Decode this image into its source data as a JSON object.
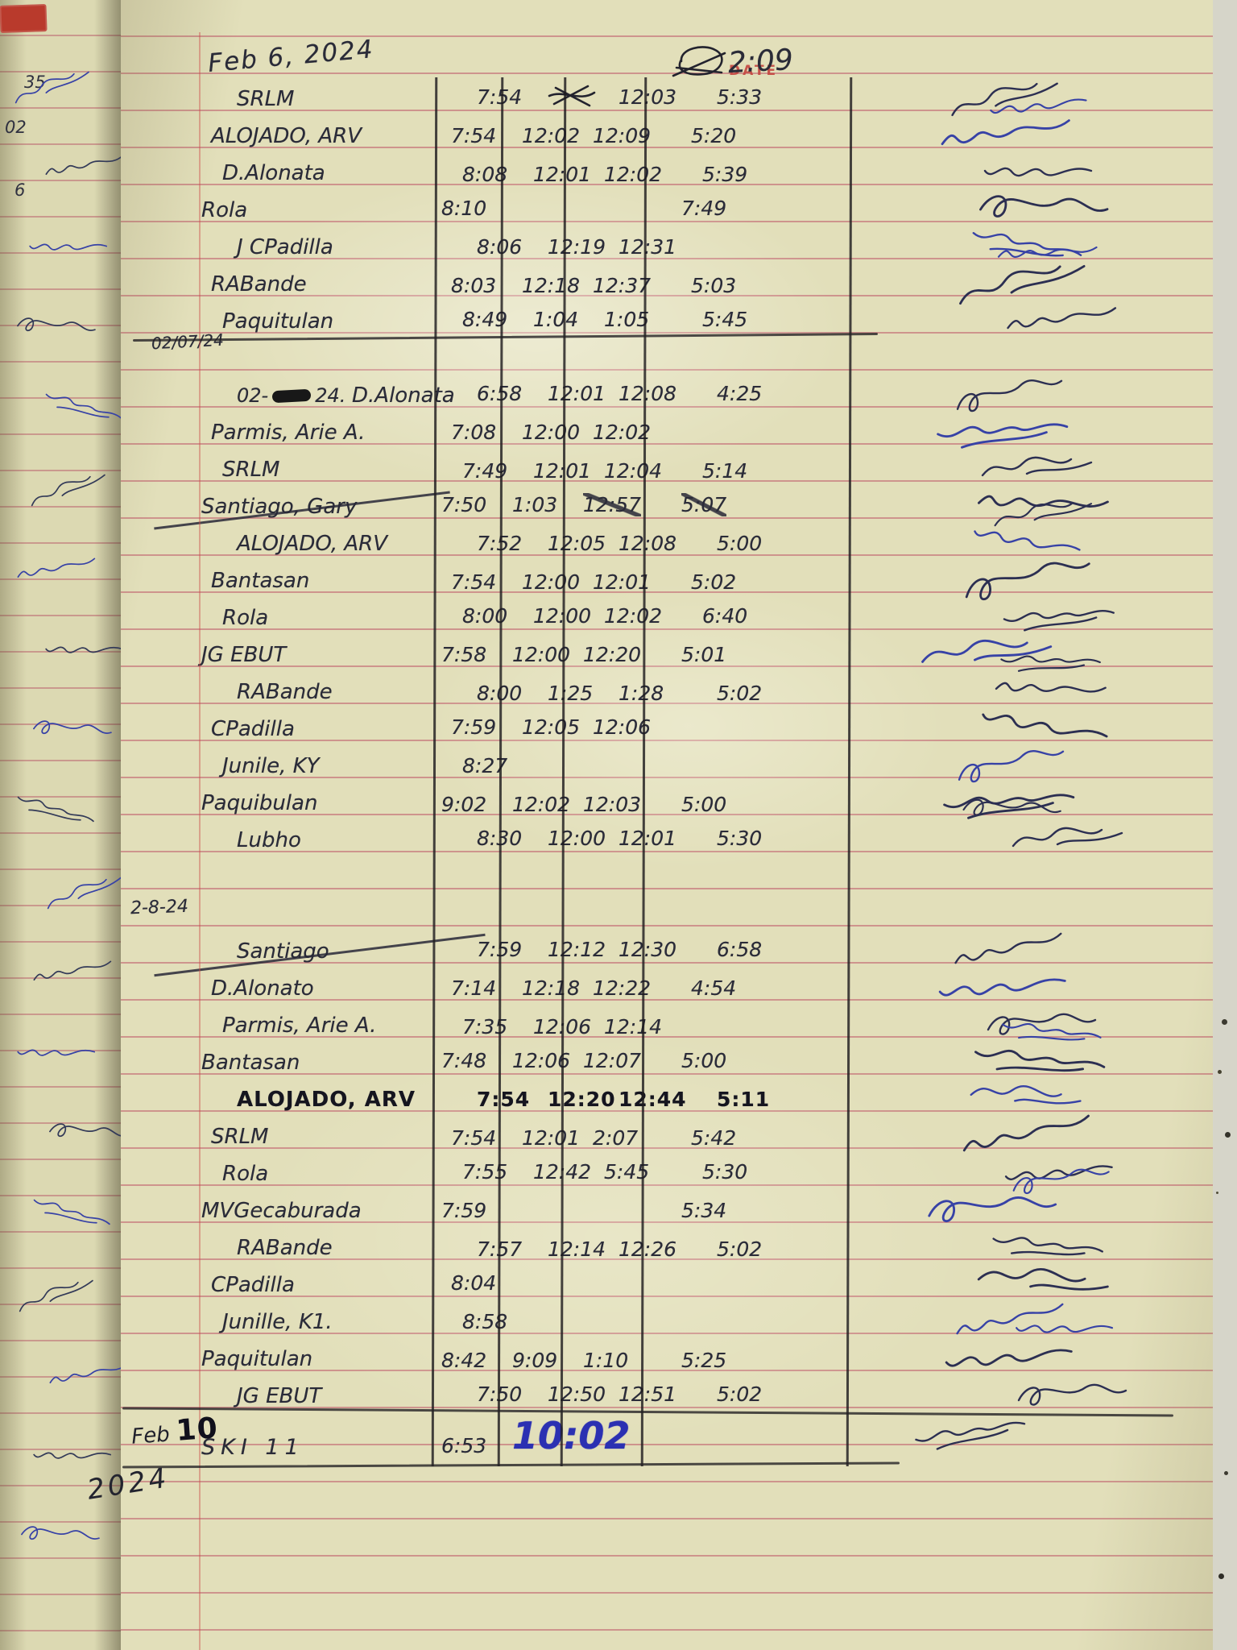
{
  "photo": {
    "date_label": "DATE",
    "top_annotation": "2:09",
    "left_fragments": [
      "35",
      "02",
      "6"
    ],
    "bottom_year": "2024"
  },
  "sections": [
    {
      "date": "Feb 6, 2024",
      "style": "big",
      "rows": [
        {
          "name": "SRLM",
          "t1": "7:54",
          "t2": "",
          "t3": "12:03",
          "t4": "5:33",
          "x2": true
        },
        {
          "name": "ALOJADO, ARV",
          "t1": "7:54",
          "t2": "12:02",
          "t3": "12:09",
          "t4": "5:20"
        },
        {
          "name": "D.Alonata",
          "t1": "8:08",
          "t2": "12:01",
          "t3": "12:02",
          "t4": "5:39"
        },
        {
          "name": "Rola",
          "t1": "8:10",
          "t2": "",
          "t3": "",
          "t4": "7:49"
        },
        {
          "name": "J CPadilla",
          "t1": "8:06",
          "t2": "12:19",
          "t3": "12:31",
          "t4": ""
        },
        {
          "name": "RABande",
          "t1": "8:03",
          "t2": "12:18",
          "t3": "12:37",
          "t4": "5:03"
        },
        {
          "name": "Paquitulan",
          "t1": "8:49",
          "t2": "1:04",
          "t3": "1:05",
          "t4": "5:45"
        }
      ]
    },
    {
      "date": "02/07/24",
      "style": "small",
      "divider_before": true,
      "rows": [
        {
          "pre": "02-",
          "pre2": "24.",
          "name": "D.Alonata",
          "t1": "6:58",
          "t2": "12:01",
          "t3": "12:08",
          "t4": "4:25"
        },
        {
          "name": "Parmis, Arie A.",
          "t1": "7:08",
          "t2": "12:00",
          "t3": "12:02",
          "t4": ""
        },
        {
          "name": "SRLM",
          "t1": "7:49",
          "t2": "12:01",
          "t3": "12:04",
          "t4": "5:14"
        },
        {
          "name": "Santiago, Gary",
          "t1": "7:50",
          "t2": "1:03",
          "t3": "12:57",
          "t4": "5:07",
          "struck": true,
          "scratch34": true
        },
        {
          "name": "ALOJADO, ARV",
          "t1": "7:52",
          "t2": "12:05",
          "t3": "12:08",
          "t4": "5:00"
        },
        {
          "name": "Bantasan",
          "t1": "7:54",
          "t2": "12:00",
          "t3": "12:01",
          "t4": "5:02"
        },
        {
          "name": "Rola",
          "t1": "8:00",
          "t2": "12:00",
          "t3": "12:02",
          "t4": "6:40"
        },
        {
          "name": "JG EBUT",
          "t1": "7:58",
          "t2": "12:00",
          "t3": "12:20",
          "t4": "5:01"
        },
        {
          "name": "RABande",
          "t1": "8:00",
          "t2": "1:25",
          "t3": "1:28",
          "t4": "5:02"
        },
        {
          "name": "CPadilla",
          "t1": "7:59",
          "t2": "12:05",
          "t3": "12:06",
          "t4": ""
        },
        {
          "name": "Junile, KY",
          "t1": "8:27",
          "t2": "",
          "t3": "",
          "t4": ""
        },
        {
          "name": "Paquibulan",
          "t1": "9:02",
          "t2": "12:02",
          "t3": "12:03",
          "t4": "5:00"
        },
        {
          "name": "Lubho",
          "t1": "8:30",
          "t2": "12:00",
          "t3": "12:01",
          "t4": "5:30"
        }
      ]
    },
    {
      "date": "2-8-24",
      "style": "small2",
      "gap_before": true,
      "rows": [
        {
          "name": "Santiago",
          "t1": "7:59",
          "t2": "12:12",
          "t3": "12:30",
          "t4": "6:58",
          "struck": true
        },
        {
          "name": "D.Alonato",
          "t1": "7:14",
          "t2": "12:18",
          "t3": "12:22",
          "t4": "4:54"
        },
        {
          "name": "Parmis, Arie A.",
          "t1": "7:35",
          "t2": "12:06",
          "t3": "12:14",
          "t4": ""
        },
        {
          "name": "Bantasan",
          "t1": "7:48",
          "t2": "12:06",
          "t3": "12:07",
          "t4": "5:00"
        },
        {
          "name": "ALOJADO, ARV",
          "t1": "7:54",
          "t2": "12:20",
          "t3": "12:44",
          "t4": "5:11",
          "bold": true
        },
        {
          "name": "SRLM",
          "t1": "7:54",
          "t2": "12:01",
          "t3": "2:07",
          "t4": "5:42"
        },
        {
          "name": "Rola",
          "t1": "7:55",
          "t2": "12:42",
          "t3": "5:45",
          "t4": "5:30"
        },
        {
          "name": "MVGecaburada",
          "t1": "7:59",
          "t2": "",
          "t3": "",
          "t4": "5:34"
        },
        {
          "name": "RABande",
          "t1": "7:57",
          "t2": "12:14",
          "t3": "12:26",
          "t4": "5:02"
        },
        {
          "name": "CPadilla",
          "t1": "8:04",
          "t2": "",
          "t3": "",
          "t4": ""
        },
        {
          "name": "Junille, K1.",
          "t1": "8:58",
          "t2": "",
          "t3": "",
          "t4": ""
        },
        {
          "name": "Paquitulan",
          "t1": "8:42",
          "t2": "9:09",
          "t3": "1:10",
          "t4": "5:25"
        },
        {
          "name": "JG EBUT",
          "t1": "7:50",
          "t2": "12:50",
          "t3": "12:51",
          "t4": "5:02"
        }
      ]
    },
    {
      "date": "Feb",
      "date_bold": "10",
      "style": "bottom",
      "rows": [
        {
          "name": "SKI 11",
          "t1": "6:53",
          "t2": "10:02",
          "t3": "",
          "t4": "",
          "big2": true,
          "last": true
        }
      ]
    }
  ]
}
